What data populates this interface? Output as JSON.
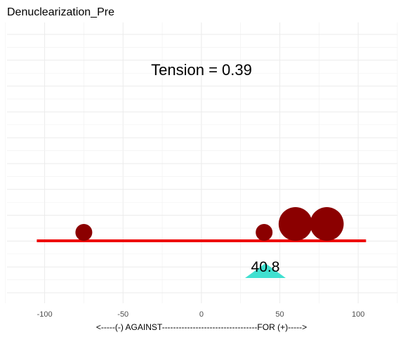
{
  "chart_data": {
    "type": "scatter",
    "title": "Denuclearization_Pre",
    "xlabel": "<-----(-) AGAINST----------------------------------FOR (+)----->",
    "ylabel": "",
    "xlim": [
      -124,
      125
    ],
    "x_ticks": [
      -100,
      -50,
      0,
      50,
      100
    ],
    "x_tick_labels": [
      "-100",
      "-50",
      "0",
      "50",
      "100"
    ],
    "grid": true,
    "annotation": "Tension = 0.39",
    "baseline": {
      "x_start": -105,
      "x_end": 105,
      "color": "#ee0000"
    },
    "points": [
      {
        "x": -75,
        "size": 1
      },
      {
        "x": 40,
        "size": 1
      },
      {
        "x": 60,
        "size": 4
      },
      {
        "x": 80,
        "size": 4
      }
    ],
    "point_color": "#8b0000",
    "marker": {
      "x": 40.8,
      "label": "40.8",
      "color": "#40e0d0"
    }
  }
}
